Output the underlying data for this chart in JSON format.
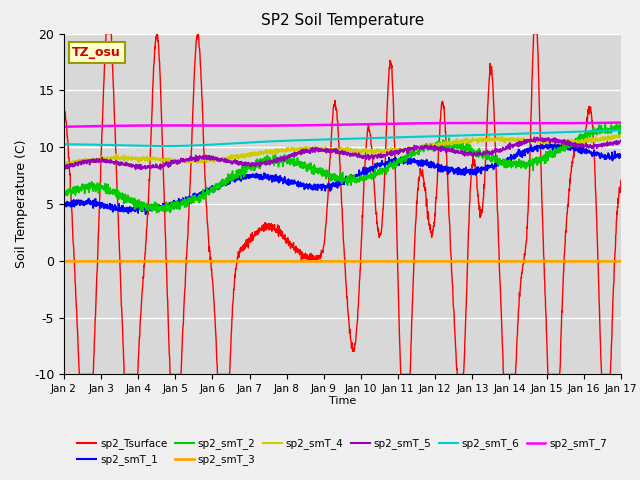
{
  "title": "SP2 Soil Temperature",
  "ylabel": "Soil Temperature (C)",
  "xlabel": "Time",
  "ylim": [
    -10,
    20
  ],
  "xlim": [
    0,
    15
  ],
  "tz_label": "TZ_osu",
  "plot_bg": "#d8d8d8",
  "fig_bg": "#f0f0f0",
  "series_order": [
    "sp2_Tsurface",
    "sp2_smT_1",
    "sp2_smT_2",
    "sp2_smT_3",
    "sp2_smT_4",
    "sp2_smT_5",
    "sp2_smT_6",
    "sp2_smT_7"
  ],
  "series": {
    "sp2_Tsurface": {
      "color": "#ff0000",
      "lw": 1.0
    },
    "sp2_smT_1": {
      "color": "#0000ff",
      "lw": 1.2
    },
    "sp2_smT_2": {
      "color": "#00cc00",
      "lw": 1.2
    },
    "sp2_smT_3": {
      "color": "#ffa500",
      "lw": 2.0
    },
    "sp2_smT_4": {
      "color": "#cccc00",
      "lw": 1.2
    },
    "sp2_smT_5": {
      "color": "#9900bb",
      "lw": 1.2
    },
    "sp2_smT_6": {
      "color": "#00cccc",
      "lw": 1.5
    },
    "sp2_smT_7": {
      "color": "#ff00ff",
      "lw": 1.8
    }
  },
  "xtick_labels": [
    "Jan 2",
    "Jan 3",
    "Jan 4",
    "Jan 5",
    "Jan 6",
    "Jan 7",
    "Jan 8",
    "Jan 9",
    "Jan 10",
    "Jan 11",
    "Jan 12",
    "Jan 13",
    "Jan 14",
    "Jan 15",
    "Jan 16",
    "Jan 17"
  ],
  "ytick_vals": [
    -10,
    -5,
    0,
    5,
    10,
    15,
    20
  ],
  "legend_row1": [
    "sp2_Tsurface",
    "sp2_smT_1",
    "sp2_smT_2",
    "sp2_smT_3",
    "sp2_smT_4",
    "sp2_smT_5"
  ],
  "legend_row2": [
    "sp2_smT_6",
    "sp2_smT_7"
  ]
}
